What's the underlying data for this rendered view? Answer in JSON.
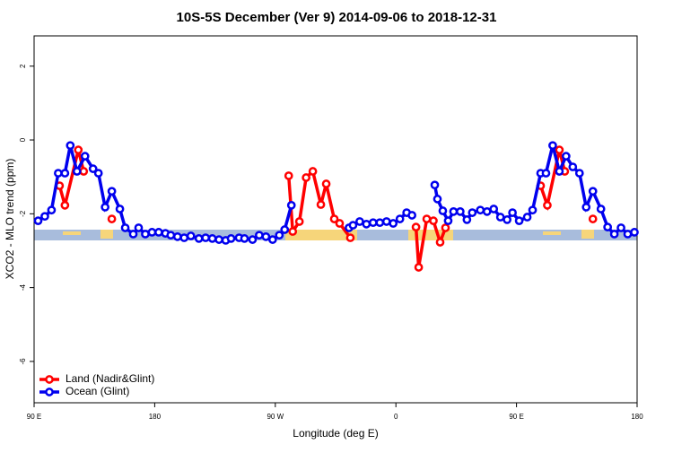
{
  "chart_data": {
    "type": "line",
    "title": "10S-5S December (Ver 9)   2014-09-06 to 2018-12-31",
    "xlabel": "Longitude (deg E)",
    "ylabel": "XCO2 - MLO trend (ppm)",
    "xlim": [
      90,
      540
    ],
    "xticks": [
      {
        "value": 90,
        "label": "90 E"
      },
      {
        "value": 180,
        "label": "180"
      },
      {
        "value": 270,
        "label": "90 W"
      },
      {
        "value": 360,
        "label": "0"
      },
      {
        "value": 450,
        "label": "90 E"
      },
      {
        "value": 540,
        "label": "180"
      }
    ],
    "ylim": [
      -7.12,
      2.82
    ],
    "yticks": [
      2,
      0,
      -2,
      -4,
      -6
    ],
    "legend": "bottom-left",
    "series": [
      {
        "name": "Land (Nadir&Glint)",
        "color": "#ff0000",
        "x": [
          109,
          113,
          123,
          127,
          null,
          148,
          null,
          280,
          283,
          288,
          293,
          298,
          304,
          308,
          314,
          318,
          326,
          null,
          375,
          377,
          383,
          388,
          393,
          397,
          null,
          468,
          473,
          482,
          486,
          null,
          507
        ],
        "values": [
          -1.24,
          -1.77,
          -0.27,
          -0.85,
          null,
          -2.14,
          null,
          -0.97,
          -2.48,
          -2.21,
          -1.02,
          -0.85,
          -1.75,
          -1.19,
          -2.14,
          -2.26,
          -2.65,
          null,
          -2.36,
          -3.45,
          -2.14,
          -2.19,
          -2.77,
          -2.38,
          null,
          -1.24,
          -1.77,
          -0.27,
          -0.85,
          null,
          -2.14
        ]
      },
      {
        "name": "Ocean (Glint)",
        "color": "#0000ee",
        "x": [
          93,
          98,
          103,
          108,
          113,
          117,
          122,
          128,
          134,
          138,
          143,
          148,
          154,
          158,
          164,
          168,
          173,
          178,
          183,
          188,
          192,
          197,
          202,
          207,
          213,
          218,
          223,
          228,
          233,
          237,
          243,
          247,
          253,
          258,
          263,
          268,
          273,
          277,
          282,
          null,
          325,
          328,
          333,
          338,
          343,
          348,
          353,
          358,
          363,
          368,
          372,
          null,
          389,
          391,
          395,
          399,
          403,
          408,
          413,
          417,
          423,
          428,
          433,
          438,
          443,
          447,
          452,
          458,
          462,
          468,
          472,
          477,
          482,
          487,
          492,
          497,
          502,
          507,
          513,
          518,
          523,
          528,
          533,
          538
        ],
        "values": [
          -2.19,
          -2.07,
          -1.9,
          -0.9,
          -0.9,
          -0.15,
          -0.85,
          -0.44,
          -0.78,
          -0.9,
          -1.82,
          -1.39,
          -1.87,
          -2.38,
          -2.55,
          -2.38,
          -2.55,
          -2.5,
          -2.5,
          -2.53,
          -2.58,
          -2.62,
          -2.65,
          -2.6,
          -2.67,
          -2.65,
          -2.67,
          -2.7,
          -2.72,
          -2.67,
          -2.65,
          -2.67,
          -2.7,
          -2.58,
          -2.62,
          -2.7,
          -2.58,
          -2.43,
          -1.77,
          null,
          -2.38,
          -2.31,
          -2.21,
          -2.28,
          -2.24,
          -2.24,
          -2.21,
          -2.26,
          -2.14,
          -1.97,
          -2.04,
          null,
          -1.22,
          -1.6,
          -1.92,
          -2.19,
          -1.94,
          -1.94,
          -2.16,
          -1.97,
          -1.9,
          -1.94,
          -1.87,
          -2.09,
          -2.16,
          -1.97,
          -2.19,
          -2.09,
          -1.9,
          -0.9,
          -0.9,
          -0.15,
          -0.85,
          -0.44,
          -0.73,
          -0.9,
          -1.82,
          -1.39,
          -1.87,
          -2.36,
          -2.55,
          -2.38,
          -2.55,
          -2.5
        ]
      }
    ]
  }
}
